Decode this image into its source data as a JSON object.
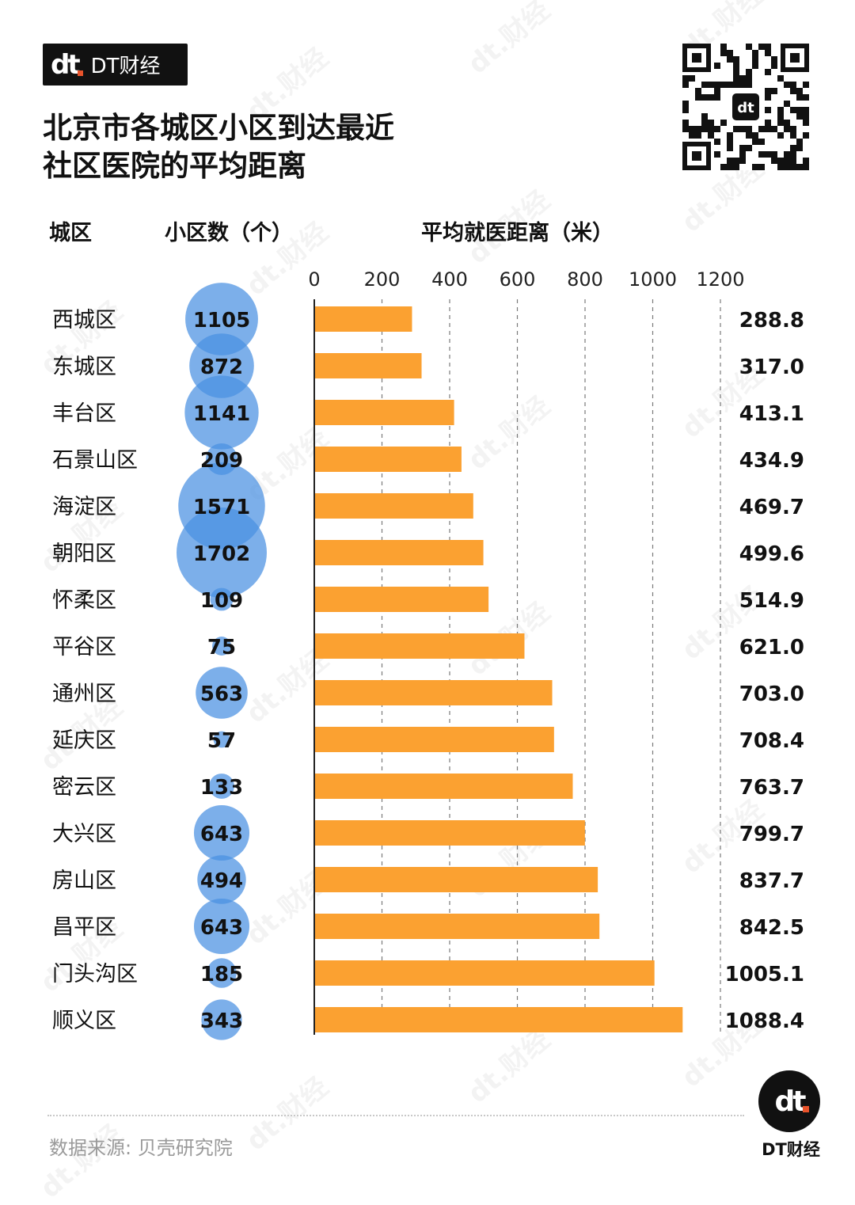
{
  "brand": {
    "logo_mark": "dt",
    "name": "DT财经"
  },
  "title_lines": [
    "北京市各城区小区到达最近",
    "社区医院的平均距离"
  ],
  "qr": {
    "icon": "qr-code-icon",
    "center_mark": "dt"
  },
  "headers": {
    "district": "城区",
    "count": "小区数（个）",
    "distance": "平均就医距离（米）"
  },
  "colors": {
    "bar": "#FBA131",
    "bubble": "#4A90E2",
    "text": "#111111"
  },
  "chart_data": {
    "type": "bar",
    "orientation": "horizontal",
    "title": "北京市各城区小区到达最近社区医院的平均距离",
    "xlabel": "平均就医距离（米）",
    "xlim": [
      0,
      1200
    ],
    "ticks": [
      0,
      200,
      400,
      600,
      800,
      1000,
      1200
    ],
    "grid": "dashed vertical",
    "categories": [
      "西城区",
      "东城区",
      "丰台区",
      "石景山区",
      "海淀区",
      "朝阳区",
      "怀柔区",
      "平谷区",
      "通州区",
      "延庆区",
      "密云区",
      "大兴区",
      "房山区",
      "昌平区",
      "门头沟区",
      "顺义区"
    ],
    "values": [
      288.8,
      317.0,
      413.1,
      434.9,
      469.7,
      499.6,
      514.9,
      621.0,
      703.0,
      708.4,
      763.7,
      799.7,
      837.7,
      842.5,
      1005.1,
      1088.4
    ],
    "value_labels": [
      "288.8",
      "317.0",
      "413.1",
      "434.9",
      "469.7",
      "499.6",
      "514.9",
      "621.0",
      "703.0",
      "708.4",
      "763.7",
      "799.7",
      "837.7",
      "842.5",
      "1005.1",
      "1088.4"
    ],
    "bubble_series": {
      "name": "小区数（个）",
      "values": [
        1105,
        872,
        1141,
        209,
        1571,
        1702,
        109,
        75,
        563,
        57,
        133,
        643,
        494,
        643,
        185,
        343
      ]
    }
  },
  "source": "数据来源: 贝壳研究院",
  "footer_logo": {
    "mark": "dt",
    "label": "DT财经"
  },
  "watermark": "dt.财经"
}
